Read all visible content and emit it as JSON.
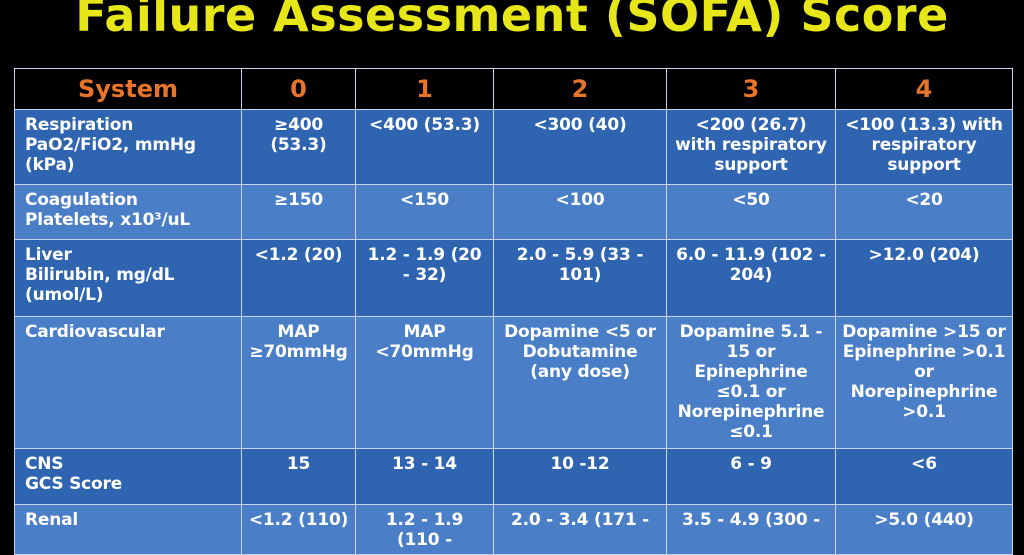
{
  "title": "Failure Assessment (SOFA) Score",
  "header": {
    "system": "System",
    "scores": [
      "0",
      "1",
      "2",
      "3",
      "4"
    ]
  },
  "rows": [
    {
      "system": [
        "Respiration",
        "PaO2/FiO2, mmHg",
        "(kPa)"
      ],
      "values": [
        "≥400 (53.3)",
        "<400 (53.3)",
        "<300 (40)",
        "<200 (26.7) with respiratory support",
        "<100 (13.3) with respiratory support"
      ]
    },
    {
      "system": [
        "Coagulation",
        "Platelets, x10³/uL"
      ],
      "values": [
        "≥150",
        "<150",
        "<100",
        "<50",
        "<20"
      ]
    },
    {
      "system": [
        "Liver",
        "Bilirubin, mg/dL",
        "(umol/L)"
      ],
      "values": [
        "<1.2 (20)",
        "1.2 - 1.9 (20 - 32)",
        "2.0 - 5.9 (33 - 101)",
        "6.0 - 11.9 (102 - 204)",
        ">12.0 (204)"
      ]
    },
    {
      "system": [
        "Cardiovascular"
      ],
      "values": [
        "MAP ≥70mmHg",
        "MAP <70mmHg",
        "Dopamine <5 or Dobutamine (any dose)",
        "Dopamine 5.1 - 15 or Epinephrine ≤0.1 or Norepinephrine ≤0.1",
        "Dopamine >15 or Epinephrine >0.1 or Norepinephrine >0.1"
      ]
    },
    {
      "system": [
        "CNS",
        "GCS Score"
      ],
      "values": [
        "15",
        "13 - 14",
        "10 -12",
        "6 - 9",
        "<6"
      ]
    },
    {
      "system": [
        "Renal"
      ],
      "values": [
        "<1.2 (110)",
        "1.2 - 1.9 (110 -",
        "2.0 - 3.4 (171 -",
        "3.5 - 4.9 (300 -",
        ">5.0 (440)"
      ]
    }
  ],
  "colors": {
    "title": "#e6e619",
    "header_text": "#e8742a",
    "row_dark": "#2f64b0",
    "row_light": "#4a7ec7",
    "background": "#000000"
  }
}
